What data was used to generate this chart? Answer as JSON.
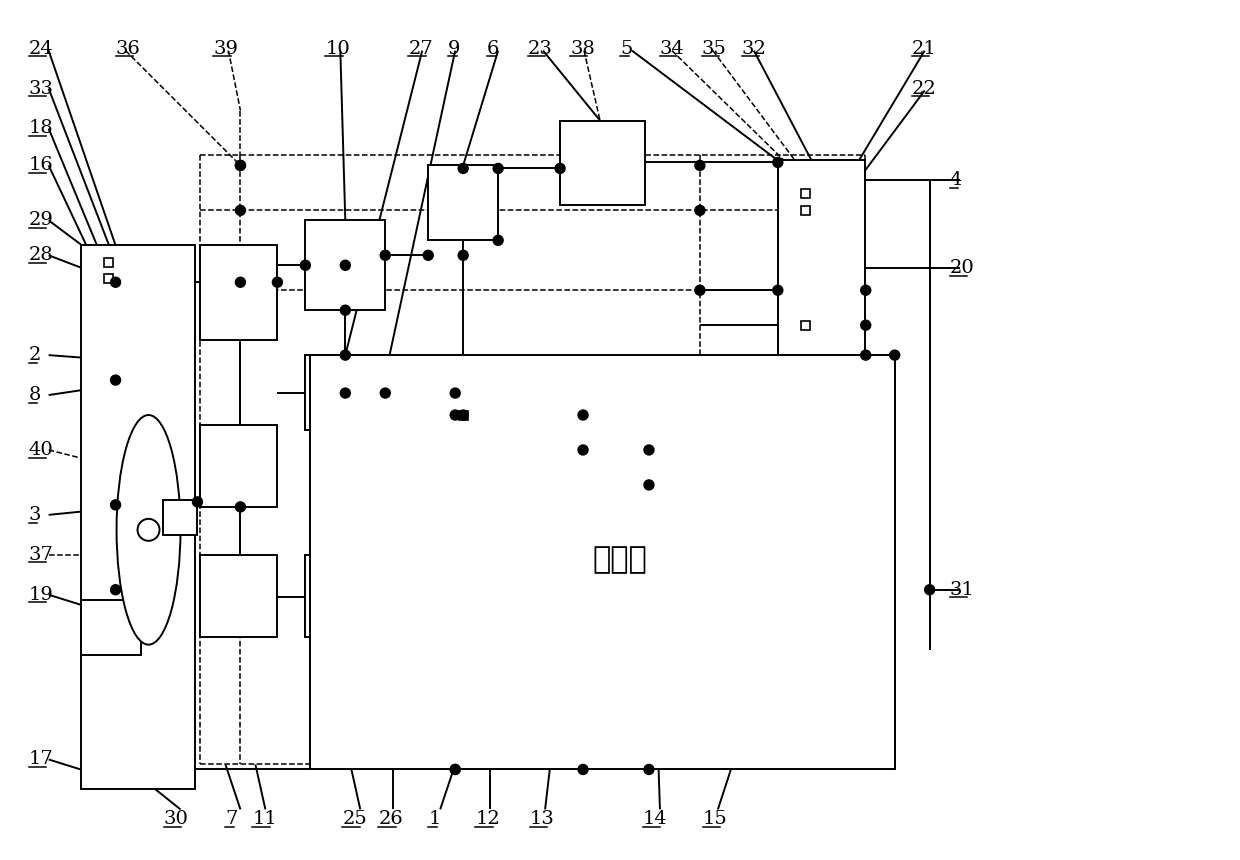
{
  "bg": "#ffffff",
  "lc": "#000000",
  "figw": 12.4,
  "figh": 8.6,
  "dpi": 100,
  "lw": 1.4,
  "lwd": 1.1,
  "fs": 14,
  "engine_text": "发动机"
}
